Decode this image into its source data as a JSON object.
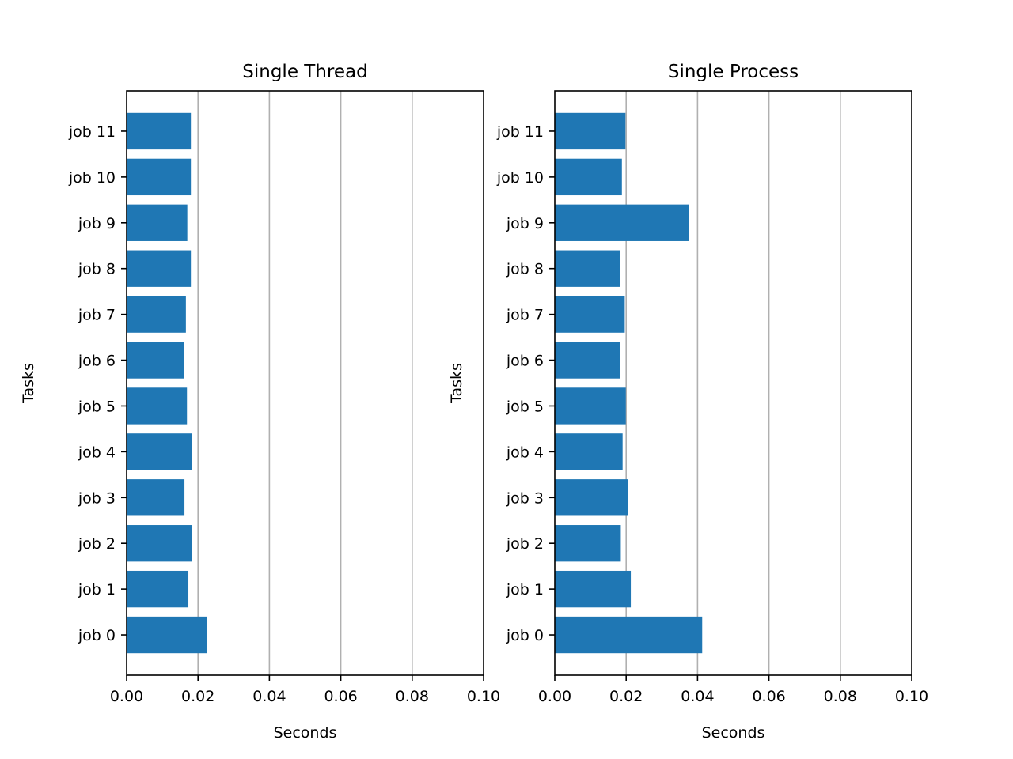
{
  "chart_data": [
    {
      "type": "bar",
      "orientation": "horizontal",
      "title": "Single Thread",
      "xlabel": "Seconds",
      "ylabel": "Tasks",
      "xlim": [
        0,
        0.1
      ],
      "xticks": [
        "0.00",
        "0.02",
        "0.04",
        "0.06",
        "0.08",
        "0.10"
      ],
      "grid": "x",
      "bar_color": "#1f77b4",
      "categories": [
        "job 0",
        "job 1",
        "job 2",
        "job 3",
        "job 4",
        "job 5",
        "job 6",
        "job 7",
        "job 8",
        "job 9",
        "job 10",
        "job 11"
      ],
      "values": [
        0.0225,
        0.0173,
        0.0184,
        0.0162,
        0.0182,
        0.0169,
        0.016,
        0.0166,
        0.018,
        0.017,
        0.018,
        0.018
      ]
    },
    {
      "type": "bar",
      "orientation": "horizontal",
      "title": "Single Process",
      "xlabel": "Seconds",
      "ylabel": "Tasks",
      "xlim": [
        0,
        0.1
      ],
      "xticks": [
        "0.00",
        "0.02",
        "0.04",
        "0.06",
        "0.08",
        "0.10"
      ],
      "grid": "x",
      "bar_color": "#1f77b4",
      "categories": [
        "job 0",
        "job 1",
        "job 2",
        "job 3",
        "job 4",
        "job 5",
        "job 6",
        "job 7",
        "job 8",
        "job 9",
        "job 10",
        "job 11"
      ],
      "values": [
        0.0413,
        0.0213,
        0.0185,
        0.0204,
        0.019,
        0.0199,
        0.0182,
        0.0196,
        0.0183,
        0.0376,
        0.0188,
        0.0198
      ]
    }
  ]
}
